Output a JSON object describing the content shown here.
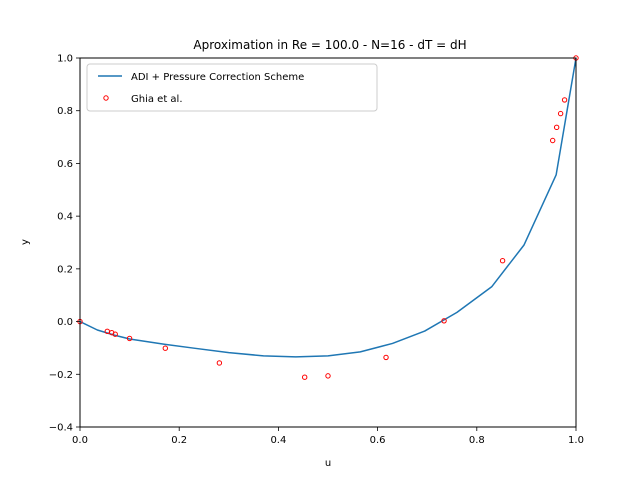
{
  "chart_data": {
    "type": "line",
    "title": "Aproximation in  Re = 100.0 - N=16 - dT = dH",
    "xlabel": "u",
    "ylabel": "y",
    "xlim": [
      0.0,
      1.0
    ],
    "ylim": [
      -0.4,
      1.0
    ],
    "xticks": [
      "0.0",
      "0.2",
      "0.4",
      "0.6",
      "0.8",
      "1.0"
    ],
    "yticks": [
      "−0.4",
      "−0.2",
      "0.0",
      "0.2",
      "0.4",
      "0.6",
      "0.8",
      "1.0"
    ],
    "xtick_values": [
      0.0,
      0.2,
      0.4,
      0.6,
      0.8,
      1.0
    ],
    "ytick_values": [
      -0.4,
      -0.2,
      0.0,
      0.2,
      0.4,
      0.6,
      0.8,
      1.0
    ],
    "legend_position": "top-left",
    "grid": false,
    "series": [
      {
        "name": "ADI + Pressure Correction Scheme",
        "kind": "line",
        "color": "#1f77b4",
        "points": [
          [
            0.0,
            0.0
          ],
          [
            0.035,
            -0.032
          ],
          [
            0.07,
            -0.052
          ],
          [
            0.1,
            -0.066
          ],
          [
            0.17,
            -0.086
          ],
          [
            0.23,
            -0.101
          ],
          [
            0.3,
            -0.118
          ],
          [
            0.37,
            -0.13
          ],
          [
            0.435,
            -0.134
          ],
          [
            0.5,
            -0.13
          ],
          [
            0.565,
            -0.115
          ],
          [
            0.63,
            -0.083
          ],
          [
            0.695,
            -0.036
          ],
          [
            0.76,
            0.035
          ],
          [
            0.83,
            0.132
          ],
          [
            0.895,
            0.29
          ],
          [
            0.96,
            0.557
          ],
          [
            1.0,
            1.0
          ]
        ]
      },
      {
        "name": "Ghia et al.",
        "kind": "scatter",
        "color": "#ff0000",
        "points": [
          [
            0.0,
            0.0
          ],
          [
            0.055,
            -0.037
          ],
          [
            0.064,
            -0.042
          ],
          [
            0.071,
            -0.048
          ],
          [
            0.1,
            -0.064
          ],
          [
            0.172,
            -0.101
          ],
          [
            0.281,
            -0.157
          ],
          [
            0.453,
            -0.211
          ],
          [
            0.5,
            -0.206
          ],
          [
            0.617,
            -0.136
          ],
          [
            0.734,
            0.003
          ],
          [
            0.852,
            0.231
          ],
          [
            0.953,
            0.687
          ],
          [
            0.961,
            0.737
          ],
          [
            0.969,
            0.789
          ],
          [
            0.977,
            0.841
          ],
          [
            1.0,
            1.0
          ]
        ]
      }
    ]
  }
}
